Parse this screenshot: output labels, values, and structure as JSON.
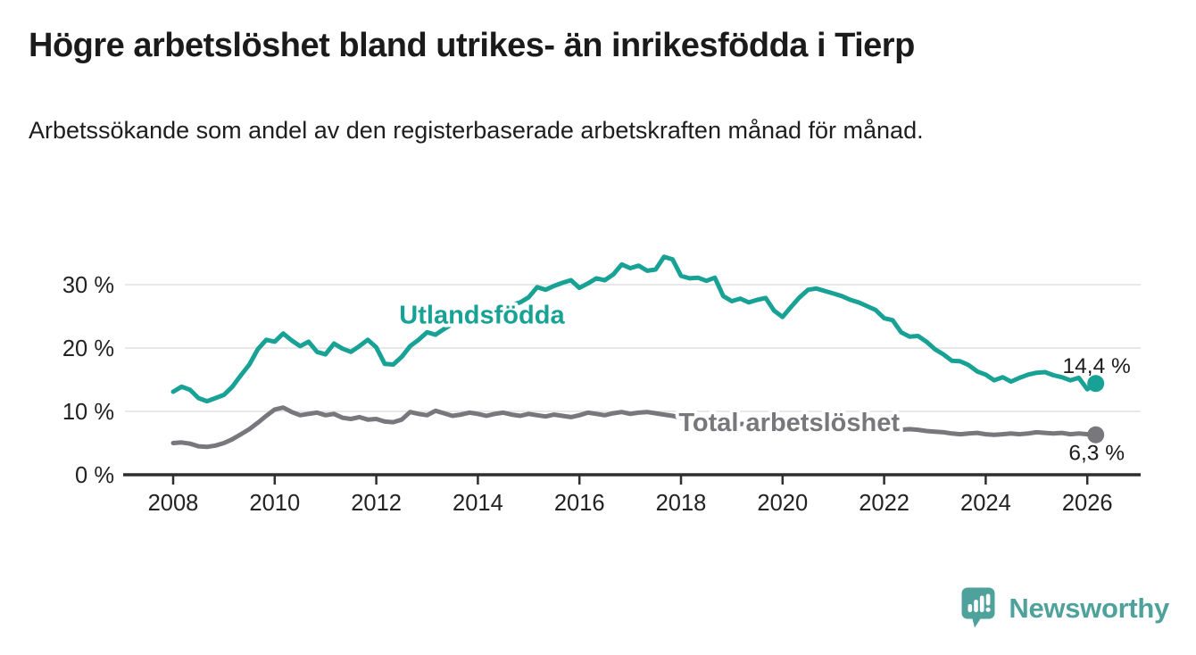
{
  "title": "Högre arbetslöshet bland utrikes- än inrikesfödda i Tierp",
  "subtitle": "Arbetssökande som andel av den registerbaserade arbetskraften månad för månad.",
  "branding": {
    "logo_text": "Newsworthy",
    "logo_color": "#4EA29B",
    "logo_icon": "newsworthy-bubble-chart-icon"
  },
  "colors": {
    "series_utlandsfodda": "#18A295",
    "series_total": "#77777C",
    "axis": "#2E2E2E",
    "grid": "#E1E1E1",
    "tick_text": "#222222",
    "end_label_text": "#1A1A1A"
  },
  "chart_data": {
    "type": "line",
    "title": "Högre arbetslöshet bland utrikes- än inrikesfödda i Tierp",
    "subtitle": "Arbetssökande som andel av den registerbaserade arbetskraften månad för månad.",
    "unit": "%",
    "grid": "horizontal",
    "x_start_year": 2008,
    "x_step_months": 2,
    "xlim": [
      2007.05,
      2027.05
    ],
    "ylim": [
      0,
      36
    ],
    "x_ticks": [
      2008,
      2010,
      2012,
      2014,
      2016,
      2018,
      2020,
      2022,
      2024,
      2026
    ],
    "y_ticks": [
      0,
      10,
      20,
      30
    ],
    "y_tick_labels": [
      "0 %",
      "10 %",
      "20 %",
      "30 %"
    ],
    "series": [
      {
        "name": "Utlandsfödda",
        "color": "#18A295",
        "end_label": "14,4 %",
        "end_value": 14.4,
        "label_anchor": {
          "x_year": 2014.08,
          "y_value": 23.9
        },
        "values": [
          13.1,
          13.9,
          13.4,
          12.1,
          11.6,
          12.1,
          12.6,
          13.9,
          15.7,
          17.4,
          19.8,
          21.3,
          21.0,
          22.3,
          21.2,
          20.3,
          21.0,
          19.4,
          19.0,
          20.7,
          19.9,
          19.4,
          20.3,
          21.3,
          20.1,
          17.5,
          17.4,
          18.6,
          20.3,
          21.3,
          22.5,
          22.1,
          23.0,
          23.8,
          24.3,
          24.1,
          25.0,
          25.4,
          26.2,
          26.0,
          26.8,
          27.2,
          28.0,
          29.6,
          29.2,
          29.8,
          30.3,
          30.7,
          29.5,
          30.2,
          31.0,
          30.7,
          31.6,
          33.2,
          32.6,
          33.0,
          32.2,
          32.4,
          34.4,
          34.0,
          31.4,
          31.0,
          31.1,
          30.6,
          31.1,
          28.2,
          27.4,
          27.8,
          27.2,
          27.6,
          27.9,
          25.9,
          24.9,
          26.5,
          28.0,
          29.2,
          29.4,
          29.0,
          28.6,
          28.2,
          27.6,
          27.2,
          26.6,
          26.0,
          24.7,
          24.4,
          22.5,
          21.8,
          21.9,
          21.0,
          19.8,
          19.0,
          18.0,
          17.9,
          17.3,
          16.3,
          15.8,
          14.9,
          15.4,
          14.7,
          15.3,
          15.8,
          16.1,
          16.2,
          15.7,
          15.4,
          14.9,
          15.3,
          13.5,
          14.4
        ]
      },
      {
        "name": "Total arbetslöshet",
        "color": "#77777C",
        "end_label": "6,3 %",
        "end_value": 6.3,
        "label_anchor": {
          "x_year": 2020.13,
          "y_value": 6.9
        },
        "values": [
          5.0,
          5.1,
          4.9,
          4.5,
          4.4,
          4.6,
          5.0,
          5.6,
          6.4,
          7.2,
          8.2,
          9.3,
          10.3,
          10.6,
          9.9,
          9.4,
          9.6,
          9.8,
          9.4,
          9.6,
          9.0,
          8.8,
          9.1,
          8.7,
          8.8,
          8.4,
          8.3,
          8.7,
          9.9,
          9.6,
          9.4,
          10.1,
          9.7,
          9.3,
          9.5,
          9.8,
          9.6,
          9.3,
          9.6,
          9.8,
          9.5,
          9.3,
          9.6,
          9.4,
          9.2,
          9.5,
          9.3,
          9.1,
          9.4,
          9.8,
          9.6,
          9.4,
          9.7,
          9.9,
          9.6,
          9.8,
          9.9,
          9.7,
          9.5,
          9.3,
          9.0,
          8.8,
          8.9,
          8.7,
          8.5,
          8.4,
          8.2,
          8.0,
          8.1,
          7.9,
          7.8,
          7.7,
          7.9,
          8.3,
          8.6,
          8.5,
          8.3,
          8.2,
          8.0,
          7.9,
          7.7,
          7.6,
          7.5,
          7.4,
          7.3,
          7.2,
          7.1,
          7.2,
          7.1,
          6.9,
          6.8,
          6.7,
          6.5,
          6.4,
          6.5,
          6.6,
          6.4,
          6.3,
          6.4,
          6.5,
          6.4,
          6.5,
          6.7,
          6.6,
          6.5,
          6.6,
          6.4,
          6.5,
          6.4,
          6.3
        ]
      }
    ]
  }
}
